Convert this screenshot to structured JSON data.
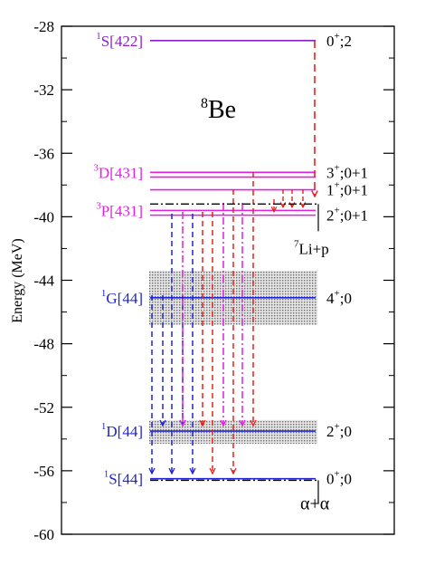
{
  "nucleus": {
    "mass": "8",
    "symbol": "Be"
  },
  "axis": {
    "ylabel": "Energy (MeV)",
    "ylim": [
      -60,
      -28
    ],
    "ticks": [
      "-28",
      "-32",
      "-36",
      "-40",
      "-44",
      "-48",
      "-52",
      "-56",
      "-60"
    ]
  },
  "colors": {
    "blue": "#1f24d6",
    "magenta": "#e31fe3",
    "red": "#e8221c",
    "purple": "#8b1fc7",
    "black": "#000000"
  },
  "levels": [
    {
      "id": "1S422",
      "energy": -28.9,
      "color": "purple",
      "left": {
        "sup": "1",
        "text": "S[422]"
      },
      "right": {
        "sup": "+",
        "pre": "0",
        "post": ";2"
      }
    },
    {
      "id": "3D431-a",
      "energy": -37.2,
      "color": "magenta",
      "left": {
        "sup": "3",
        "text": "D[431]"
      },
      "right": {
        "sup": "+",
        "pre": "3",
        "post": ";0+1"
      }
    },
    {
      "id": "3D431-b",
      "energy": -37.5,
      "color": "magenta"
    },
    {
      "id": "3P431-a",
      "energy": -38.3,
      "color": "magenta",
      "right": {
        "sup": "+",
        "pre": "1",
        "post": ";0+1"
      }
    },
    {
      "id": "3P431-b",
      "energy": -39.6,
      "color": "magenta",
      "left": {
        "sup": "3",
        "text": "P[431]"
      }
    },
    {
      "id": "3P431-c",
      "energy": -39.9,
      "color": "magenta",
      "right": {
        "sup": "+",
        "pre": "2",
        "post": ";0+1"
      }
    },
    {
      "id": "1G44",
      "energy": -45.1,
      "color": "blue",
      "left": {
        "sup": "1",
        "text": "G[44]"
      },
      "right": {
        "sup": "+",
        "pre": "4",
        "post": ";0"
      }
    },
    {
      "id": "1D44",
      "energy": -53.5,
      "color": "blue",
      "left": {
        "sup": "1",
        "text": "D[44]"
      },
      "right": {
        "sup": "+",
        "pre": "2",
        "post": ";0"
      }
    },
    {
      "id": "1S44",
      "energy": -56.5,
      "color": "blue",
      "left": {
        "sup": "1",
        "text": "S[44]"
      },
      "right": {
        "sup": "+",
        "pre": "0",
        "post": ";0"
      }
    }
  ],
  "thresholds": [
    {
      "id": "li7p",
      "energy": -39.2,
      "sup": "7",
      "text": "Li+p"
    },
    {
      "id": "alpha",
      "energy": -56.6,
      "text": "α+α"
    }
  ],
  "bands": [
    {
      "id": "band-1G",
      "from": -43.4,
      "to": -46.8
    },
    {
      "id": "band-1D",
      "from": -52.8,
      "to": -54.3
    }
  ]
}
